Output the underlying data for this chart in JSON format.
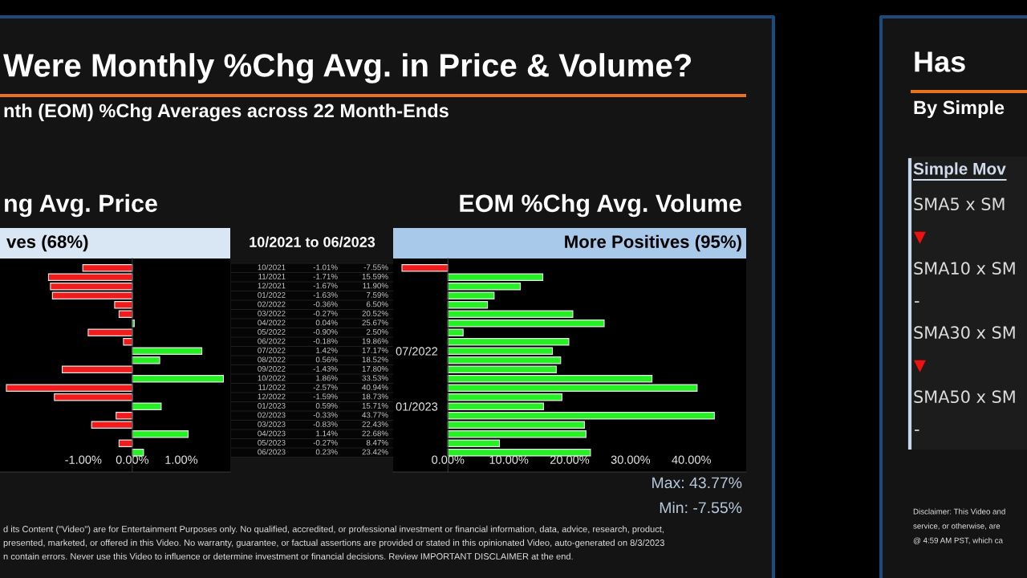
{
  "chart_data": [
    {
      "type": "bar",
      "orientation": "horizontal",
      "title": "ng Avg. Price",
      "subtitle": "ves (68%)",
      "categories": [
        "10/2021",
        "11/2021",
        "12/2021",
        "01/2022",
        "02/2022",
        "03/2022",
        "04/2022",
        "05/2022",
        "06/2022",
        "07/2022",
        "08/2022",
        "09/2022",
        "10/2022",
        "11/2022",
        "12/2022",
        "01/2023",
        "02/2023",
        "03/2023",
        "04/2023",
        "05/2023",
        "06/2023"
      ],
      "values": [
        -1.01,
        -1.71,
        -1.67,
        -1.63,
        -0.36,
        -0.27,
        0.04,
        -0.9,
        -0.18,
        1.42,
        0.56,
        -1.43,
        1.86,
        -2.57,
        -1.59,
        0.59,
        -0.33,
        -0.83,
        1.14,
        -0.27,
        0.23
      ],
      "colors": [
        "#f21b1b",
        "#f21b1b",
        "#f21b1b",
        "#f21b1b",
        "#f21b1b",
        "#f21b1b",
        "#24f024",
        "#f21b1b",
        "#f21b1b",
        "#24f024",
        "#24f024",
        "#f21b1b",
        "#24f024",
        "#f21b1b",
        "#f21b1b",
        "#24f024",
        "#f21b1b",
        "#f21b1b",
        "#24f024",
        "#f21b1b",
        "#24f024"
      ],
      "value_labels": [
        "-1.01%",
        "-1.71%",
        "-1.67%",
        "-1.63%",
        "-0.36%",
        "-0.27%",
        "0.04%",
        "-0.90%",
        "-0.18%",
        "1.42%",
        "0.56%",
        "-1.43%",
        "1.86%",
        "-2.57%",
        "-1.59%",
        "0.59%",
        "-0.33%",
        "-0.83%",
        "1.14%",
        "-0.27%",
        "0.23%"
      ],
      "xlim": [
        -2.7,
        2.0
      ],
      "xticks": [
        {
          "value": -1,
          "label": "-1.00%"
        },
        {
          "value": 0,
          "label": "0.00%"
        },
        {
          "value": 1,
          "label": "1.00%"
        }
      ],
      "tick_labels": "x",
      "annotations": [
        "Were Monthly %Chg Avg. in Price & Volume?",
        "nth (EOM) %Chg Averages across 22 Month-Ends",
        "10/2021 to 06/2023",
        "d its Content (\"Video\") are for Entertainment Purposes only. No qualified, accredited, or professional investment or financial information, data, advice, research, product,",
        "presented, marketed, or offered in this Video. No warranty, guarantee, or factual assertions are provided or stated in this opinionated Video, auto-generated on 8/3/2023",
        "n contain errors. Never use this Video to influence or determine investment or financial decisions. Review IMPORTANT DISCLAIMER at the end."
      ]
    },
    {
      "type": "bar",
      "orientation": "horizontal",
      "title": "EOM %Chg Avg. Volume",
      "subtitle": "More Positives (95%)",
      "categories": [
        null,
        null,
        null,
        null,
        null,
        null,
        null,
        null,
        null,
        "07/2022",
        null,
        null,
        null,
        null,
        null,
        "01/2023",
        null,
        null,
        null,
        null,
        null
      ],
      "values": [
        -7.55,
        15.59,
        11.9,
        7.59,
        6.5,
        20.52,
        25.67,
        2.5,
        19.86,
        17.17,
        18.52,
        17.8,
        33.53,
        40.94,
        18.73,
        15.71,
        43.77,
        22.43,
        22.68,
        8.47,
        23.42
      ],
      "colors": [
        "#f21b1b",
        "#24f024",
        "#24f024",
        "#24f024",
        "#24f024",
        "#24f024",
        "#24f024",
        "#24f024",
        "#24f024",
        "#24f024",
        "#24f024",
        "#24f024",
        "#24f024",
        "#24f024",
        "#24f024",
        "#24f024",
        "#24f024",
        "#24f024",
        "#24f024",
        "#24f024",
        "#24f024"
      ],
      "value_labels": [
        "-7.55%",
        "15.59%",
        "11.90%",
        "7.59%",
        "6.50%",
        "20.52%",
        "25.67%",
        "2.50%",
        "19.86%",
        "17.17%",
        "18.52%",
        "17.80%",
        "33.53%",
        "40.94%",
        "18.73%",
        "15.71%",
        "43.77%",
        "22.43%",
        "22.68%",
        "8.47%",
        "23.42%"
      ],
      "xlim": [
        -9,
        49
      ],
      "xticks": [
        {
          "value": 0,
          "label": "0.00%"
        },
        {
          "value": 10,
          "label": "10.00%"
        },
        {
          "value": 20,
          "label": "20.00%"
        },
        {
          "value": 30,
          "label": "30.00%"
        },
        {
          "value": 40,
          "label": "40.00%"
        }
      ],
      "annotations": [
        "Max: 43.77%",
        "Min: -7.55%"
      ]
    },
    {
      "type": "other",
      "title": "Has",
      "subtitle": "By Simple",
      "annotations": [
        "Simple Mov",
        "SMA5 x SM",
        "▼",
        "SMA10 x SM",
        "-",
        "SMA30 x SM",
        "▼",
        "SMA50 x SM",
        "-",
        "Disclaimer: This Video and",
        "service, or otherwise, are",
        "@ 4:59 AM PST, which ca"
      ]
    }
  ]
}
